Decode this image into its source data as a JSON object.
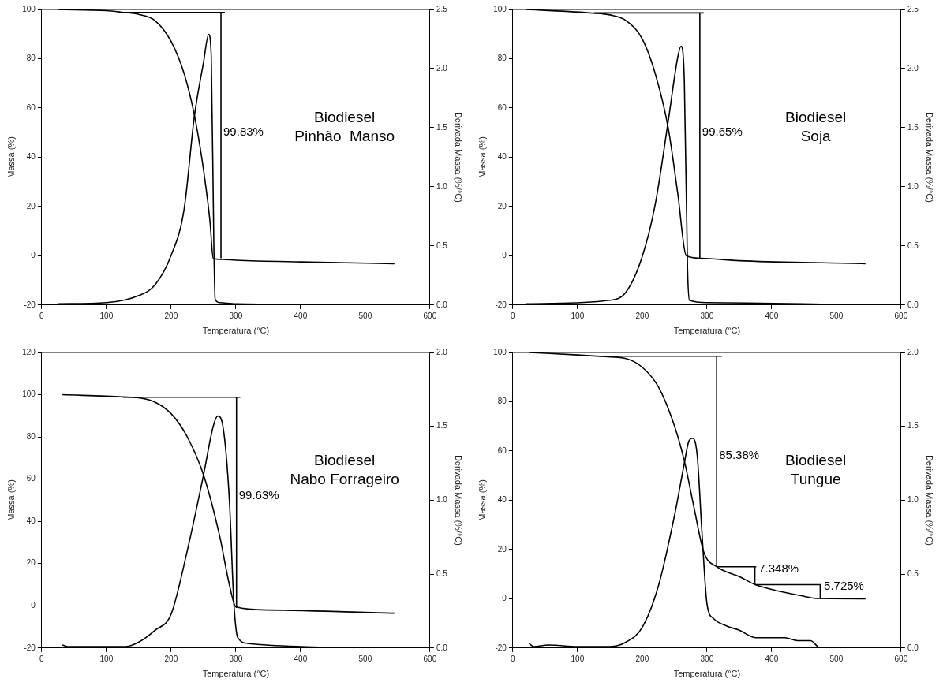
{
  "chart_data": [
    {
      "type": "line",
      "xlabel": "Temperatura (°C)",
      "ylabel": "Massa (%)",
      "y2label": "Derivada Massa (%/°C)",
      "xlim": [
        0,
        600
      ],
      "xticks": [
        0,
        100,
        200,
        300,
        400,
        500,
        600
      ],
      "ylim": [
        -20,
        100
      ],
      "yticks": [
        -20,
        0,
        20,
        40,
        60,
        80,
        100
      ],
      "y2lim": [
        0,
        2.5
      ],
      "y2ticks": [
        {
          "value": 0,
          "label": "0.0"
        },
        0.5,
        {
          "value": 1,
          "label": "1.0"
        },
        1.5,
        {
          "value": 2,
          "label": "2.0"
        },
        2.5
      ],
      "grid": false,
      "legend": false,
      "marker": "none",
      "line_style": "solid",
      "annotations": [
        {
          "text": "99.83%",
          "x": 277,
          "y": 50
        },
        "Biodiesel\nPinhão  Manso"
      ],
      "series": [
        {
          "type": "line",
          "color": "#000000",
          "x": [
            25,
            100,
            123,
            150,
            175,
            200,
            220,
            236,
            250,
            260,
            265,
            280,
            300,
            400,
            545
          ],
          "values": [
            100,
            99.5,
            98.9,
            98,
            95.5,
            87,
            74,
            57,
            35,
            14,
            -1,
            -1.5,
            -1.8,
            -2.5,
            -3.2
          ]
        },
        {
          "type": "line",
          "axis": "y2",
          "color": "#000000",
          "x": [
            25,
            100,
            150,
            175,
            200,
            220,
            236,
            250,
            258,
            262,
            266,
            268,
            275,
            300,
            545
          ],
          "values": [
            0.01,
            0.02,
            0.08,
            0.17,
            0.42,
            0.81,
            1.6,
            2.05,
            2.29,
            2.1,
            0.5,
            0.05,
            0.02,
            0.01,
            0
          ]
        },
        {
          "type": "line",
          "color": "#000000",
          "x": [
            123,
            283
          ],
          "values": [
            98.8,
            98.8
          ]
        },
        {
          "type": "line",
          "color": "#000000",
          "x": [
            277,
            277
          ],
          "values": [
            98.8,
            -1
          ]
        }
      ]
    },
    {
      "type": "line",
      "xlabel": "Temperatura (°C)",
      "ylabel": "Massa (%)",
      "y2label": "Derivada Massa (%/°C)",
      "xlim": [
        0,
        600
      ],
      "xticks": [
        0,
        100,
        200,
        300,
        400,
        500,
        600
      ],
      "ylim": [
        -20,
        100
      ],
      "yticks": [
        -20,
        0,
        20,
        40,
        60,
        80,
        100
      ],
      "y2lim": [
        0,
        2.5
      ],
      "y2ticks": [
        {
          "value": 0,
          "label": "0.0"
        },
        0.5,
        {
          "value": 1,
          "label": "1.0"
        },
        1.5,
        {
          "value": 2,
          "label": "2.0"
        },
        2.5
      ],
      "grid": false,
      "legend": false,
      "marker": "none",
      "line_style": "solid",
      "annotations": [
        {
          "text": "99.65%",
          "x": 289,
          "y": 50
        },
        "Biodiesel\nSoja"
      ],
      "series": [
        {
          "type": "line",
          "color": "#000000",
          "x": [
            20,
            125,
            150,
            175,
            200,
            220,
            240,
            255,
            268,
            290,
            350,
            545
          ],
          "values": [
            100,
            98.5,
            97.8,
            95.5,
            88,
            74,
            52,
            25,
            0,
            -1,
            -2,
            -3.2
          ]
        },
        {
          "type": "line",
          "axis": "y2",
          "color": "#000000",
          "x": [
            20,
            150,
            175,
            200,
            220,
            240,
            255,
            260,
            265,
            270,
            273,
            300,
            545
          ],
          "values": [
            0.01,
            0.04,
            0.11,
            0.41,
            0.85,
            1.55,
            2.1,
            2.19,
            1.9,
            0.3,
            0.04,
            0.02,
            0
          ]
        },
        {
          "type": "line",
          "color": "#000000",
          "x": [
            125,
            295
          ],
          "values": [
            98.6,
            98.6
          ]
        },
        {
          "type": "line",
          "color": "#000000",
          "x": [
            289,
            289
          ],
          "values": [
            98.6,
            -1
          ]
        }
      ]
    },
    {
      "type": "line",
      "xlabel": "Temperatura (°C)",
      "ylabel": "Massa (%)",
      "y2label": "Derivada Massa (%/°C)",
      "xlim": [
        0,
        600
      ],
      "xticks": [
        0,
        100,
        200,
        300,
        400,
        500,
        600
      ],
      "ylim": [
        -20,
        120
      ],
      "yticks": [
        -20,
        0,
        20,
        40,
        60,
        80,
        100,
        120
      ],
      "y2lim": [
        0,
        2
      ],
      "y2ticks": [
        {
          "value": 0,
          "label": "0.0"
        },
        0.5,
        {
          "value": 1,
          "label": "1.0"
        },
        1.5,
        {
          "value": 2,
          "label": "2.0"
        }
      ],
      "grid": false,
      "legend": false,
      "marker": "none",
      "line_style": "solid",
      "annotations": [
        {
          "text": "99.63%",
          "x": 301,
          "y": 52
        },
        "Biodiesel\nNabo Forrageiro"
      ],
      "series": [
        {
          "type": "line",
          "color": "#000000",
          "x": [
            32,
            125,
            150,
            175,
            200,
            225,
            250,
            275,
            290,
            300,
            350,
            545
          ],
          "values": [
            100,
            99,
            98.5,
            96.5,
            91,
            80,
            62,
            33,
            10,
            -0.5,
            -2,
            -3.5
          ]
        },
        {
          "type": "line",
          "axis": "y2",
          "color": "#000000",
          "x": [
            32,
            40,
            130,
            150,
            175,
            200,
            225,
            250,
            265,
            272,
            280,
            290,
            297,
            303,
            320,
            400,
            545
          ],
          "values": [
            0.02,
            0.01,
            0.01,
            0.04,
            0.12,
            0.23,
            0.66,
            1.17,
            1.5,
            1.57,
            1.5,
            1,
            0.3,
            0.07,
            0.03,
            0.01,
            0
          ]
        },
        {
          "type": "line",
          "color": "#000000",
          "x": [
            125,
            307
          ],
          "values": [
            98.8,
            98.8
          ]
        },
        {
          "type": "line",
          "color": "#000000",
          "x": [
            301,
            301
          ],
          "values": [
            98.8,
            -1
          ]
        }
      ]
    },
    {
      "type": "line",
      "xlabel": "Temperatura (°C)",
      "ylabel": "Massa (%)",
      "y2label": "Derivada Massa (%/°C)",
      "xlim": [
        0,
        600
      ],
      "xticks": [
        0,
        100,
        200,
        300,
        400,
        500,
        600
      ],
      "ylim": [
        -20,
        100
      ],
      "yticks": [
        -20,
        0,
        20,
        40,
        60,
        80,
        100
      ],
      "y2lim": [
        0,
        2
      ],
      "y2ticks": [
        {
          "value": 0,
          "label": "0.0"
        },
        0.5,
        {
          "value": 1,
          "label": "1.0"
        },
        1.5,
        {
          "value": 2,
          "label": "2.0"
        }
      ],
      "grid": false,
      "legend": false,
      "marker": "none",
      "line_style": "solid",
      "annotations": [
        {
          "text": "85.38%",
          "x": 315,
          "y": 58
        },
        {
          "text": "7.348%",
          "x": 376,
          "y": 12
        },
        {
          "text": "5.725%",
          "x": 477,
          "y": 5
        },
        "Biodiesel\nTungue"
      ],
      "series": [
        {
          "type": "line",
          "color": "#000000",
          "x": [
            25,
            100,
            143,
            175,
            200,
            225,
            250,
            265,
            280,
            295,
            315,
            350,
            375,
            400,
            450,
            470,
            545
          ],
          "values": [
            100,
            99,
            98.3,
            97.5,
            94,
            86,
            70,
            56,
            37,
            19,
            13,
            9,
            5.7,
            3.8,
            1,
            0.1,
            0
          ]
        },
        {
          "type": "line",
          "axis": "y2",
          "color": "#000000",
          "x": [
            25,
            32,
            55,
            100,
            150,
            175,
            200,
            225,
            250,
            265,
            272,
            278,
            285,
            292,
            300,
            310,
            330,
            350,
            375,
            400,
            420,
            440,
            460,
            475,
            545
          ],
          "values": [
            0.03,
            0.01,
            0.02,
            0.01,
            0.01,
            0.04,
            0.14,
            0.42,
            0.9,
            1.25,
            1.4,
            1.42,
            1.3,
            0.8,
            0.3,
            0.2,
            0.15,
            0.12,
            0.07,
            0.07,
            0.07,
            0.05,
            0.05,
            0,
            0
          ]
        },
        {
          "type": "line",
          "color": "#000000",
          "x": [
            143,
            323
          ],
          "values": [
            98.5,
            98.5
          ]
        },
        {
          "type": "line",
          "color": "#000000",
          "x": [
            315,
            315
          ],
          "values": [
            98.5,
            13
          ]
        },
        {
          "type": "line",
          "color": "#000000",
          "x": [
            315,
            376
          ],
          "values": [
            13,
            13
          ]
        },
        {
          "type": "line",
          "color": "#000000",
          "x": [
            374,
            374
          ],
          "values": [
            13,
            5.7
          ]
        },
        {
          "type": "line",
          "color": "#000000",
          "x": [
            374,
            477
          ],
          "values": [
            5.7,
            5.7
          ]
        },
        {
          "type": "line",
          "color": "#000000",
          "x": [
            475,
            475
          ],
          "values": [
            5.7,
            0
          ]
        }
      ]
    }
  ]
}
